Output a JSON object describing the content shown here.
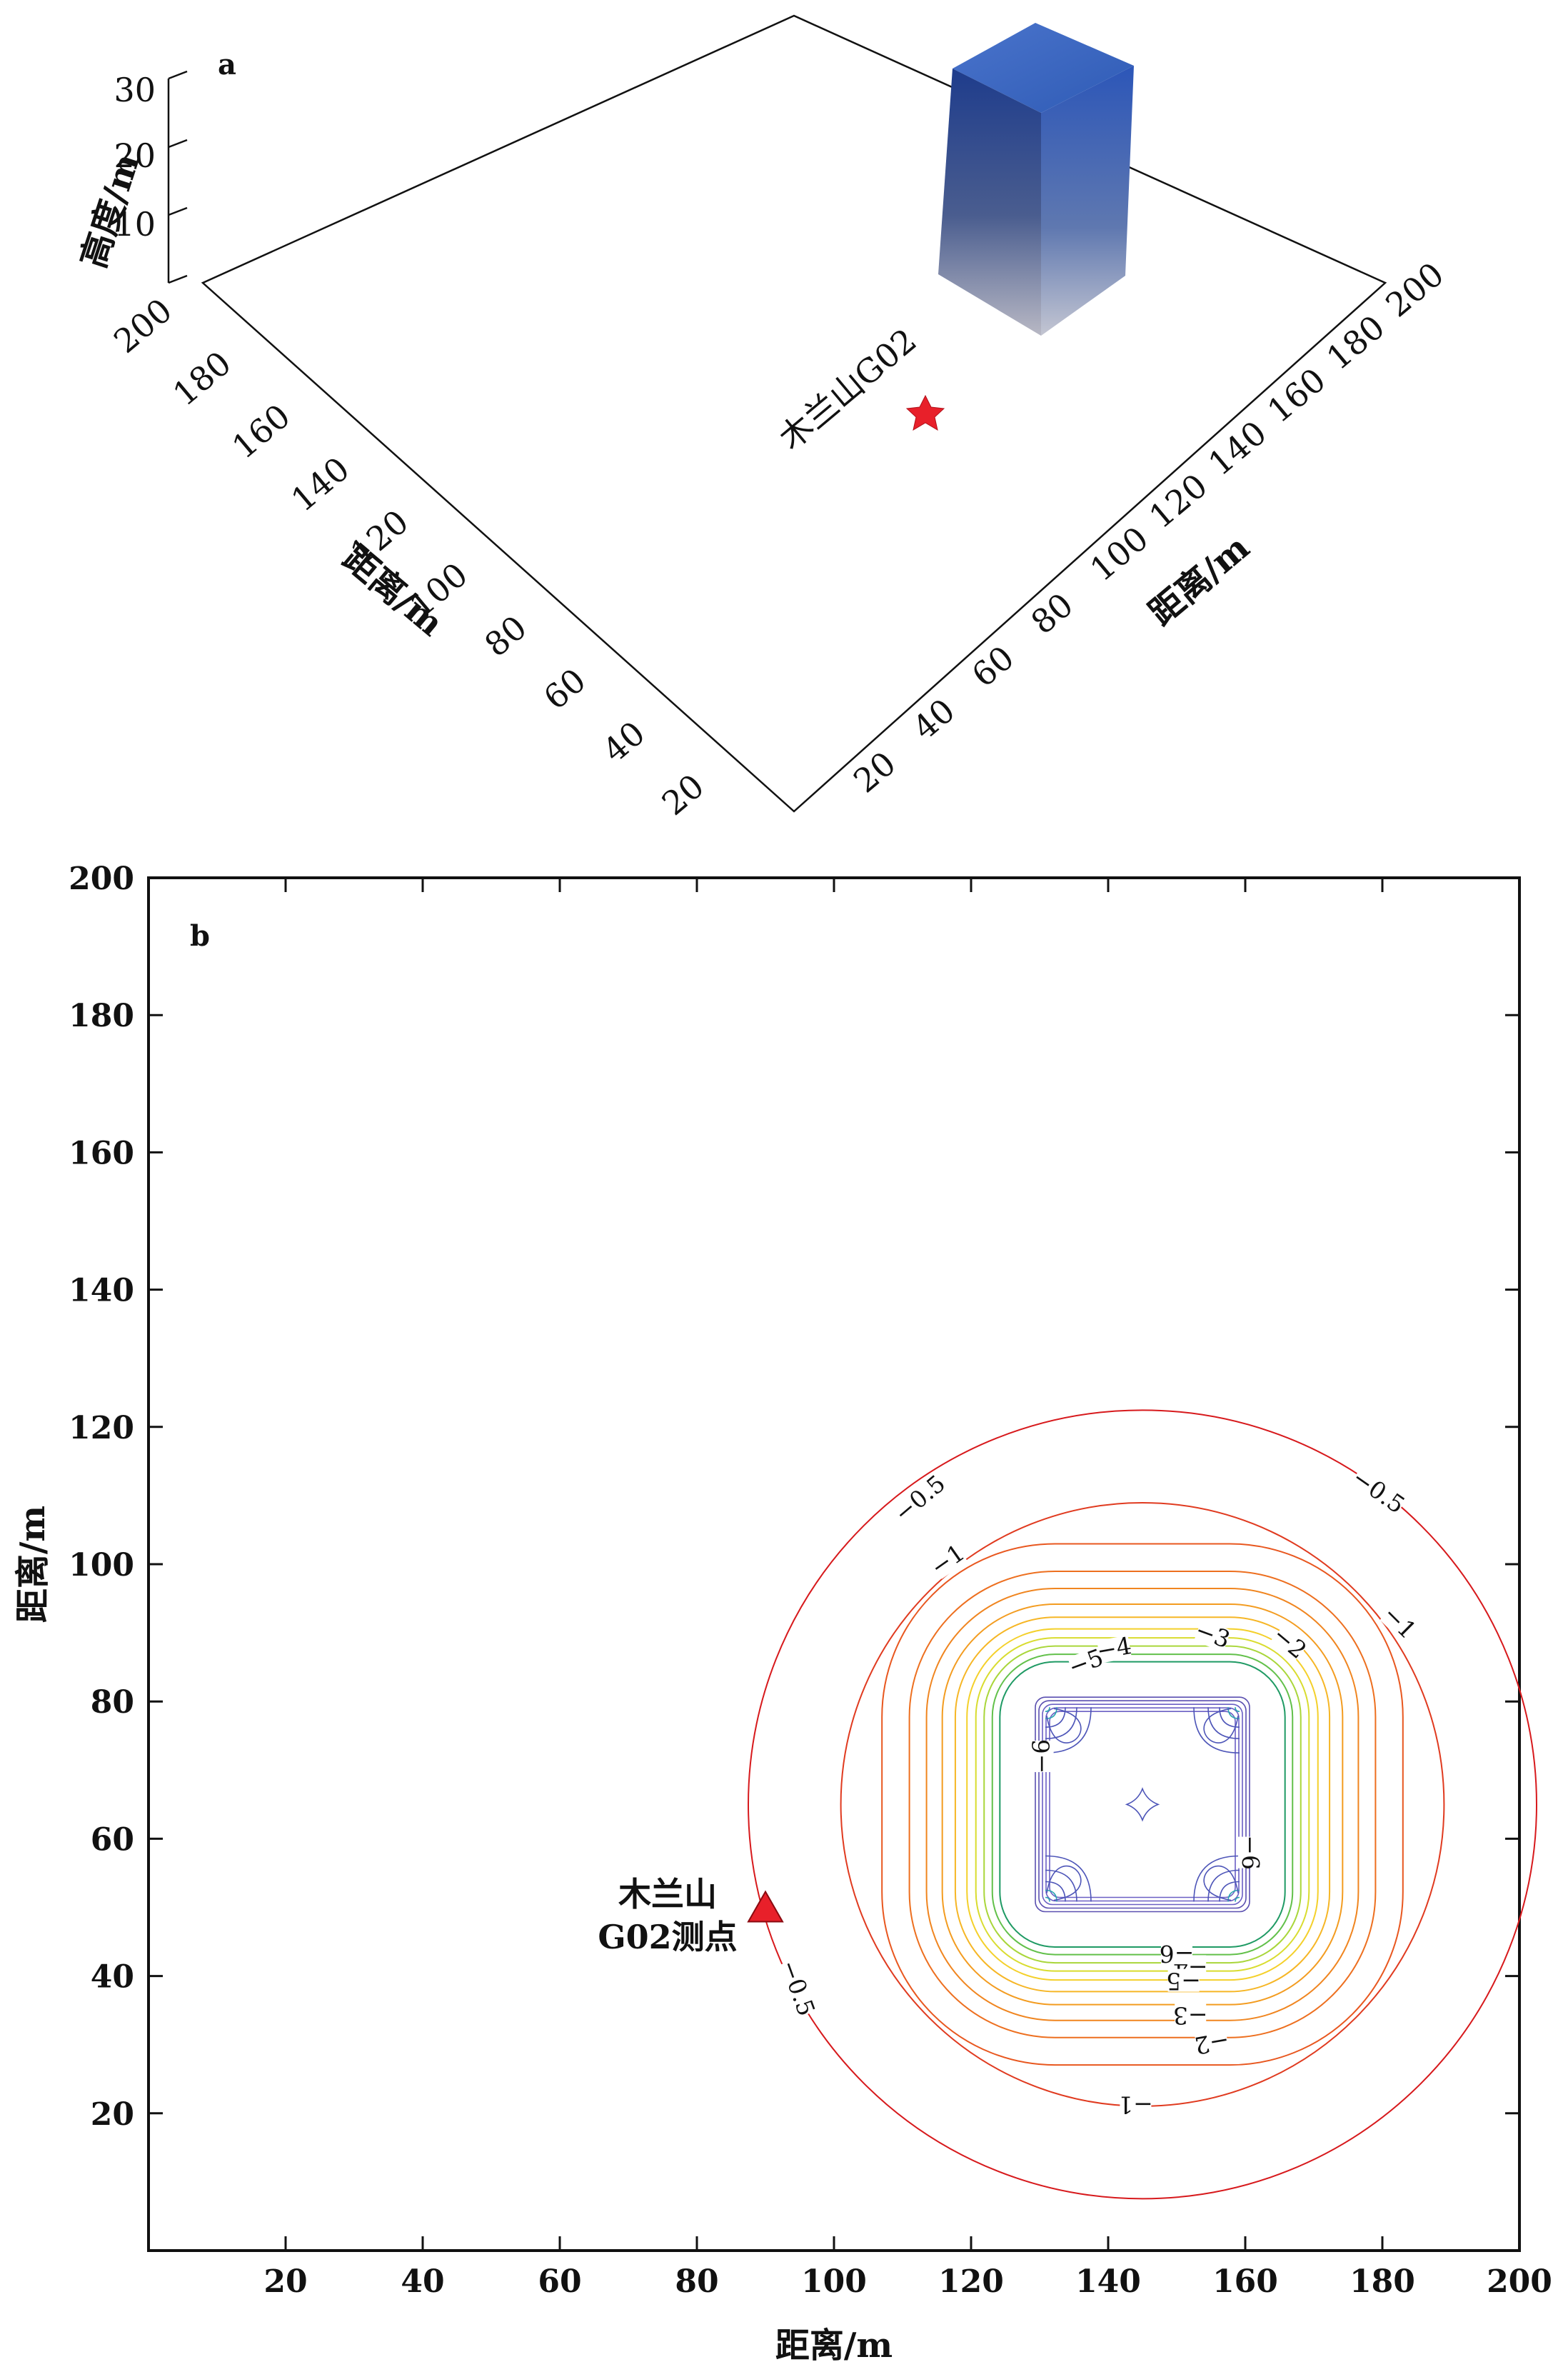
{
  "chart_data": [
    {
      "panel": "a",
      "type": "3d-model",
      "x_label": "距离/m",
      "y_label": "距离/m",
      "z_label": "高度/m",
      "x_ticks": [
        "20",
        "40",
        "60",
        "80",
        "100",
        "120",
        "140",
        "160",
        "180",
        "200"
      ],
      "y_ticks": [
        "20",
        "40",
        "60",
        "80",
        "100",
        "120",
        "140",
        "160",
        "180",
        "200"
      ],
      "z_ticks": [
        "10",
        "20",
        "30"
      ],
      "xlim": [
        0,
        200
      ],
      "ylim": [
        0,
        200
      ],
      "zlim": [
        0,
        30
      ],
      "station": {
        "label": "木兰山G02",
        "x": 90,
        "y": 50,
        "marker": "star",
        "color": "#e8202a"
      },
      "block": {
        "x": [
          130,
          160
        ],
        "y": [
          50,
          80
        ],
        "z": [
          0,
          30
        ],
        "top_color": "#3a63b8",
        "side_color": "#2a4d9c"
      }
    },
    {
      "panel": "b",
      "type": "contour",
      "xlabel": "距离/m",
      "ylabel": "距离/m",
      "xlim": [
        0,
        200
      ],
      "ylim": [
        0,
        200
      ],
      "x_ticks": [
        20,
        40,
        60,
        80,
        100,
        120,
        140,
        160,
        180,
        200
      ],
      "y_ticks": [
        20,
        40,
        60,
        80,
        100,
        120,
        140,
        160,
        180,
        200
      ],
      "center": [
        145,
        65
      ],
      "block": {
        "x": [
          130,
          160
        ],
        "y": [
          50,
          80
        ]
      },
      "contours": [
        {
          "level": -0.5,
          "color": "#d7191c",
          "r": 57.5
        },
        {
          "level": -1,
          "color": "#e03a1f",
          "r": 44
        },
        {
          "level": -1.5,
          "color": "#e8571f",
          "r": 38
        },
        {
          "level": -2,
          "color": "#ed6f1f",
          "r": 34
        },
        {
          "level": -2.5,
          "color": "#f0851f",
          "r": 31.5
        },
        {
          "level": -3,
          "color": "#f39c20",
          "r": 29.2
        },
        {
          "level": -3.5,
          "color": "#f6b625",
          "r": 27.3
        },
        {
          "level": -4,
          "color": "#f4d02a",
          "r": 25.6
        },
        {
          "level": -4.5,
          "color": "#d9dc2f",
          "r": 24.3
        },
        {
          "level": -5,
          "color": "#a9d63a",
          "r": 23.1
        },
        {
          "level": -5.5,
          "color": "#62c04a",
          "r": 21.9
        },
        {
          "level": -6,
          "color": "#1f9a64",
          "r": 20.8
        }
      ],
      "contour_labels": [
        {
          "text": "−0.5",
          "x": 113,
          "y": 109,
          "angle": -40
        },
        {
          "text": "−0.5",
          "x": 179,
          "y": 110,
          "angle": 35
        },
        {
          "text": "−0.5",
          "x": 94,
          "y": 38,
          "angle": 70
        },
        {
          "text": "−1",
          "x": 117,
          "y": 100,
          "angle": -35
        },
        {
          "text": "−1",
          "x": 182,
          "y": 91,
          "angle": 45
        },
        {
          "text": "−1",
          "x": 144,
          "y": 22,
          "angle": 180
        },
        {
          "text": "−2",
          "x": 166,
          "y": 88,
          "angle": 40
        },
        {
          "text": "−2",
          "x": 155,
          "y": 31,
          "angle": 170
        },
        {
          "text": "−3",
          "x": 155,
          "y": 89,
          "angle": 20
        },
        {
          "text": "−3",
          "x": 152,
          "y": 35,
          "angle": 180
        },
        {
          "text": "−4",
          "x": 141,
          "y": 87,
          "angle": -10
        },
        {
          "text": "−4",
          "x": 152,
          "y": 42,
          "angle": 180
        },
        {
          "text": "−5",
          "x": 137,
          "y": 85,
          "angle": -20
        },
        {
          "text": "−5",
          "x": 151,
          "y": 40,
          "angle": 180
        },
        {
          "text": "−6",
          "x": 131,
          "y": 72,
          "angle": -90
        },
        {
          "text": "−6",
          "x": 150,
          "y": 44,
          "angle": 180
        },
        {
          "text": "−6",
          "x": 160,
          "y": 58,
          "angle": 90
        }
      ],
      "station": {
        "label_line1": "木兰山",
        "label_line2": "G02测点",
        "x": 90,
        "y": 50,
        "marker": "triangle",
        "color": "#e8202a"
      }
    }
  ]
}
